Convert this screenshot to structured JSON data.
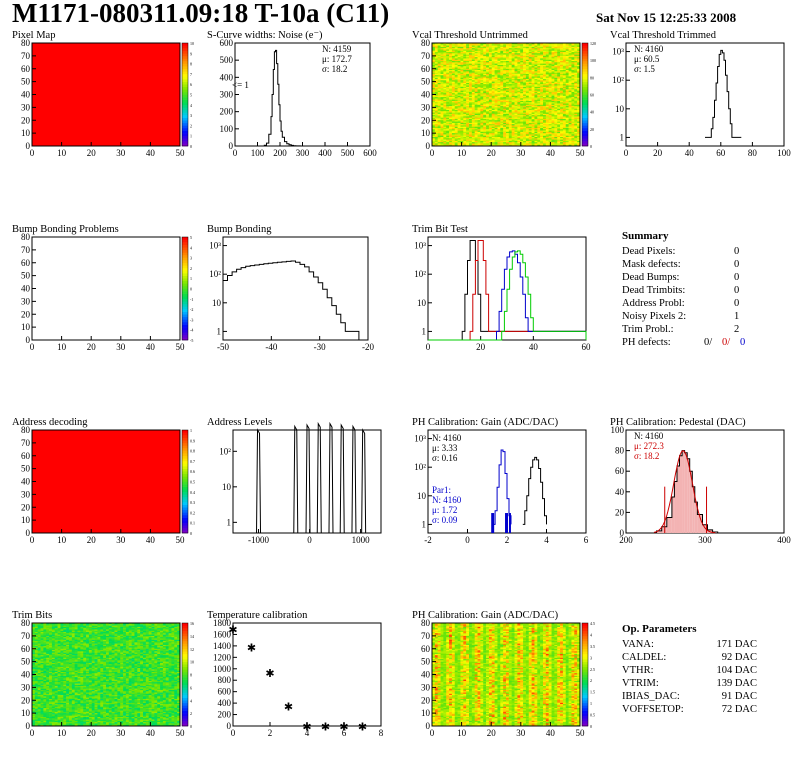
{
  "header": {
    "title": "M1171-080311.09:18 T-10a (C11)",
    "date": "Sat Nov 15 12:25:33 2008"
  },
  "colors": {
    "red_map": "#ff0000",
    "blue_line": "#0000cc",
    "green_line": "#00cc00",
    "red_line": "#cc0000",
    "fit_red": "#cc0000"
  },
  "panels": {
    "pixel_map": {
      "title": "Pixel Map"
    },
    "scurve": {
      "title": "S-Curve widths: Noise (e⁻)",
      "stats": [
        "N: 4159",
        "μ: 172.7",
        "σ: 18.2"
      ],
      "note": "<= 1"
    },
    "vcal_untrimmed": {
      "title": "Vcal Threshold Untrimmed"
    },
    "vcal_trimmed": {
      "title": "Vcal Threshold Trimmed",
      "stats": [
        "N: 4160",
        "μ: 60.5",
        "σ:  1.5"
      ]
    },
    "bump_problems": {
      "title": "Bump Bonding Problems"
    },
    "bump_bonding": {
      "title": "Bump Bonding"
    },
    "trim_bit_test": {
      "title": "Trim Bit Test"
    },
    "address_decoding": {
      "title": "Address decoding"
    },
    "address_levels": {
      "title": "Address Levels"
    },
    "ph_gain": {
      "title": "PH Calibration: Gain (ADC/DAC)",
      "stats": [
        "N: 4160",
        "μ: 3.33",
        "σ: 0.16"
      ],
      "par1_label": "Par1:",
      "par1_stats": [
        "N: 4160",
        "μ: 1.72",
        "σ: 0.09"
      ]
    },
    "ph_pedestal": {
      "title": "PH Calibration: Pedestal (DAC)",
      "stats": [
        "N: 4160",
        "μ: 272.3",
        "σ: 18.2"
      ]
    },
    "trim_bits": {
      "title": "Trim Bits"
    },
    "temperature": {
      "title": "Temperature calibration"
    },
    "ph_gain_map": {
      "title": "PH Calibration: Gain (ADC/DAC)"
    }
  },
  "summary": {
    "heading": "Summary",
    "rows": [
      {
        "label": "Dead Pixels:",
        "value": "0"
      },
      {
        "label": "Mask defects:",
        "value": "0"
      },
      {
        "label": "Dead Bumps:",
        "value": "0"
      },
      {
        "label": "Dead Trimbits:",
        "value": "0"
      },
      {
        "label": "Address Probl:",
        "value": "0"
      },
      {
        "label": "Noisy Pixels 2:",
        "value": "1"
      },
      {
        "label": "Trim Probl.:",
        "value": "2"
      }
    ],
    "ph_defects": {
      "label": "PH defects:",
      "v1": "0/",
      "v2": "0/",
      "v3": "0"
    }
  },
  "op_params": {
    "heading": "Op. Parameters",
    "rows": [
      {
        "label": "VANA:",
        "value": "171 DAC"
      },
      {
        "label": "CALDEL:",
        "value": "92 DAC"
      },
      {
        "label": "VTHR:",
        "value": "104 DAC"
      },
      {
        "label": "VTRIM:",
        "value": "139 DAC"
      },
      {
        "label": "IBIAS_DAC:",
        "value": "91 DAC"
      },
      {
        "label": "VOFFSETOP:",
        "value": "72 DAC"
      }
    ]
  },
  "chart_data": [
    {
      "name": "Pixel Map",
      "type": "heatmap",
      "xticks": [
        "0",
        "10",
        "20",
        "30",
        "40",
        "50"
      ],
      "yticks": [
        "0",
        "10",
        "20",
        "30",
        "40",
        "50",
        "60",
        "70",
        "80"
      ],
      "xlim": [
        0,
        52
      ],
      "ylim": [
        0,
        80
      ],
      "fill": "uniform-red",
      "zticks": [
        "0",
        "1",
        "2",
        "3",
        "4",
        "5",
        "6",
        "7",
        "8",
        "9",
        "10"
      ]
    },
    {
      "name": "S-Curve widths",
      "type": "line",
      "xticks": [
        "0",
        "100",
        "200",
        "300",
        "400",
        "500",
        "600"
      ],
      "yticks": [
        "0",
        "100",
        "200",
        "300",
        "400",
        "500",
        "600"
      ],
      "xlim": [
        0,
        600
      ],
      "ylim": [
        0,
        700
      ],
      "x": [
        120,
        130,
        140,
        150,
        160,
        165,
        170,
        175,
        180,
        185,
        190,
        195,
        200,
        205,
        210,
        220,
        230,
        240,
        250,
        260,
        270,
        280,
        290
      ],
      "y": [
        0,
        5,
        20,
        80,
        200,
        350,
        520,
        640,
        650,
        560,
        420,
        280,
        170,
        100,
        60,
        30,
        15,
        8,
        4,
        2,
        1,
        1,
        0
      ]
    },
    {
      "name": "Vcal Threshold Untrimmed",
      "type": "heatmap",
      "xticks": [
        "0",
        "10",
        "20",
        "30",
        "40",
        "50"
      ],
      "yticks": [
        "0",
        "10",
        "20",
        "30",
        "40",
        "50",
        "60",
        "70",
        "80"
      ],
      "xlim": [
        0,
        52
      ],
      "ylim": [
        0,
        80
      ],
      "zticks": [
        "0",
        "20",
        "40",
        "60",
        "80",
        "100",
        "120"
      ]
    },
    {
      "name": "Vcal Threshold Trimmed",
      "type": "line",
      "log_y": true,
      "xticks": [
        "0",
        "20",
        "40",
        "60",
        "80",
        "100"
      ],
      "xlim": [
        0,
        100
      ],
      "yticks": [
        "1",
        "10",
        "10²",
        "10³"
      ],
      "x": [
        50,
        52,
        54,
        55,
        56,
        57,
        58,
        59,
        60,
        61,
        62,
        63,
        64,
        65,
        66,
        67,
        70,
        73
      ],
      "y": [
        1,
        1,
        2,
        5,
        20,
        80,
        300,
        800,
        1100,
        900,
        500,
        150,
        40,
        10,
        3,
        1,
        1,
        1
      ]
    },
    {
      "name": "Bump Bonding Problems",
      "type": "heatmap",
      "xticks": [
        "0",
        "10",
        "20",
        "30",
        "40",
        "50"
      ],
      "yticks": [
        "0",
        "10",
        "20",
        "30",
        "40",
        "50",
        "60",
        "70",
        "80"
      ],
      "xlim": [
        0,
        52
      ],
      "ylim": [
        0,
        80
      ],
      "fill": "empty",
      "zticks": [
        "-5",
        "-4",
        "-3",
        "-2",
        "-1",
        "0",
        "1",
        "2",
        "3",
        "4",
        "5"
      ]
    },
    {
      "name": "Bump Bonding",
      "type": "line",
      "log_y": true,
      "xticks": [
        "-50",
        "-40",
        "-30",
        "-20"
      ],
      "xlim": [
        -50,
        -18
      ],
      "yticks": [
        "1",
        "10",
        "10²",
        "10³"
      ],
      "x": [
        -50,
        -49,
        -48,
        -47,
        -46,
        -45,
        -44,
        -43,
        -42,
        -41,
        -40,
        -39,
        -38,
        -37,
        -36,
        -35,
        -34,
        -33,
        -32,
        -31,
        -30,
        -29,
        -28,
        -27,
        -26,
        -25,
        -24,
        -23,
        -22,
        -21,
        -20
      ],
      "y": [
        60,
        90,
        120,
        150,
        170,
        190,
        200,
        210,
        220,
        230,
        240,
        250,
        260,
        270,
        280,
        290,
        260,
        220,
        180,
        120,
        80,
        50,
        30,
        15,
        8,
        4,
        2,
        1,
        1,
        1,
        0
      ]
    },
    {
      "name": "Trim Bit Test",
      "type": "line",
      "log_y": true,
      "xticks": [
        "0",
        "20",
        "40",
        "60"
      ],
      "xlim": [
        0,
        60
      ],
      "yticks": [
        "1",
        "10",
        "10²",
        "10³"
      ],
      "series": [
        {
          "color": "black",
          "x": [
            13,
            14,
            15,
            16,
            17,
            18,
            19,
            20
          ],
          "y": [
            1,
            20,
            300,
            1500,
            1500,
            300,
            20,
            1
          ]
        },
        {
          "color": "red",
          "x": [
            16,
            17,
            18,
            19,
            20,
            21,
            22,
            23
          ],
          "y": [
            1,
            20,
            300,
            1500,
            1500,
            300,
            20,
            1
          ]
        },
        {
          "color": "blue",
          "x": [
            26,
            27,
            28,
            29,
            30,
            31,
            32,
            33,
            34,
            35,
            36,
            37,
            38
          ],
          "y": [
            1,
            5,
            30,
            150,
            400,
            600,
            650,
            500,
            250,
            80,
            20,
            3,
            1
          ]
        },
        {
          "color": "green",
          "x": [
            28,
            29,
            30,
            31,
            32,
            33,
            34,
            35,
            36,
            37,
            38,
            39,
            40
          ],
          "y": [
            1,
            5,
            30,
            150,
            400,
            600,
            650,
            500,
            250,
            80,
            20,
            3,
            1
          ]
        }
      ]
    },
    {
      "name": "Address decoding",
      "type": "heatmap",
      "xticks": [
        "0",
        "10",
        "20",
        "30",
        "40",
        "50"
      ],
      "yticks": [
        "0",
        "10",
        "20",
        "30",
        "40",
        "50",
        "60",
        "70",
        "80"
      ],
      "xlim": [
        0,
        52
      ],
      "ylim": [
        0,
        80
      ],
      "fill": "uniform-red",
      "zticks": [
        "0",
        "0.1",
        "0.2",
        "0.3",
        "0.4",
        "0.5",
        "0.6",
        "0.7",
        "0.8",
        "0.9",
        "1"
      ]
    },
    {
      "name": "Address Levels",
      "type": "line",
      "log_y": true,
      "xticks": [
        "-1000",
        "0",
        "1000"
      ],
      "xlim": [
        -1500,
        1400
      ],
      "yticks": [
        "1",
        "10",
        "10²"
      ],
      "peaks_x": [
        -1000,
        -270,
        -30,
        190,
        420,
        640,
        870,
        1060
      ],
      "peaks_y": [
        400,
        500,
        550,
        600,
        600,
        550,
        500,
        400
      ]
    },
    {
      "name": "PH Calibration: Gain",
      "type": "line",
      "log_y": true,
      "xticks": [
        "-2",
        "0",
        "2",
        "4",
        "6"
      ],
      "xlim": [
        -2,
        6
      ],
      "yticks": [
        "1",
        "10",
        "10²",
        "10³"
      ],
      "series": [
        {
          "color": "black",
          "x": [
            2.8,
            2.9,
            3.0,
            3.1,
            3.2,
            3.3,
            3.4,
            3.5,
            3.6,
            3.7,
            3.8,
            3.9,
            4.0
          ],
          "y": [
            1,
            3,
            10,
            40,
            100,
            180,
            220,
            180,
            90,
            30,
            8,
            2,
            1
          ]
        },
        {
          "color": "blue",
          "x": [
            1.3,
            1.4,
            1.5,
            1.6,
            1.7,
            1.8,
            1.9,
            2.0,
            2.1,
            2.2
          ],
          "y": [
            1,
            3,
            20,
            120,
            400,
            350,
            60,
            8,
            2,
            1
          ]
        }
      ]
    },
    {
      "name": "PH Calibration: Pedestal",
      "type": "line",
      "xticks": [
        "200",
        "300",
        "400"
      ],
      "xlim": [
        160,
        470
      ],
      "yticks": [
        "0",
        "20",
        "40",
        "60",
        "80",
        "100"
      ],
      "ylim": [
        0,
        100
      ],
      "x": [
        210,
        220,
        230,
        240,
        250,
        255,
        260,
        265,
        270,
        275,
        280,
        285,
        290,
        295,
        300,
        310,
        320,
        330,
        340
      ],
      "y": [
        0,
        2,
        6,
        15,
        35,
        50,
        65,
        75,
        80,
        78,
        72,
        60,
        45,
        30,
        18,
        8,
        3,
        1,
        0
      ]
    },
    {
      "name": "Trim Bits",
      "type": "heatmap",
      "xticks": [
        "0",
        "10",
        "20",
        "30",
        "40",
        "50"
      ],
      "yticks": [
        "0",
        "10",
        "20",
        "30",
        "40",
        "50",
        "60",
        "70",
        "80"
      ],
      "xlim": [
        0,
        52
      ],
      "ylim": [
        0,
        80
      ],
      "zticks": [
        "0",
        "2",
        "4",
        "6",
        "8",
        "10",
        "12",
        "14",
        "16"
      ]
    },
    {
      "name": "Temperature calibration",
      "type": "scatter",
      "xticks": [
        "0",
        "2",
        "4",
        "6",
        "8"
      ],
      "xlim": [
        0,
        8
      ],
      "yticks": [
        "0",
        "200",
        "400",
        "600",
        "800",
        "1000",
        "1200",
        "1400",
        "1600",
        "1800"
      ],
      "ylim": [
        0,
        1900
      ],
      "x": [
        0,
        1,
        2,
        3,
        4,
        5,
        6,
        7
      ],
      "y": [
        1800,
        1470,
        1000,
        380,
        10,
        10,
        10,
        10
      ]
    },
    {
      "name": "PH Calibration: Gain map",
      "type": "heatmap",
      "xticks": [
        "0",
        "10",
        "20",
        "30",
        "40",
        "50"
      ],
      "yticks": [
        "0",
        "10",
        "20",
        "30",
        "40",
        "50",
        "60",
        "70",
        "80"
      ],
      "xlim": [
        0,
        52
      ],
      "ylim": [
        0,
        80
      ],
      "zticks": [
        "0",
        "0.5",
        "1",
        "1.5",
        "2",
        "2.5",
        "3",
        "3.5",
        "4",
        "4.5"
      ]
    }
  ]
}
